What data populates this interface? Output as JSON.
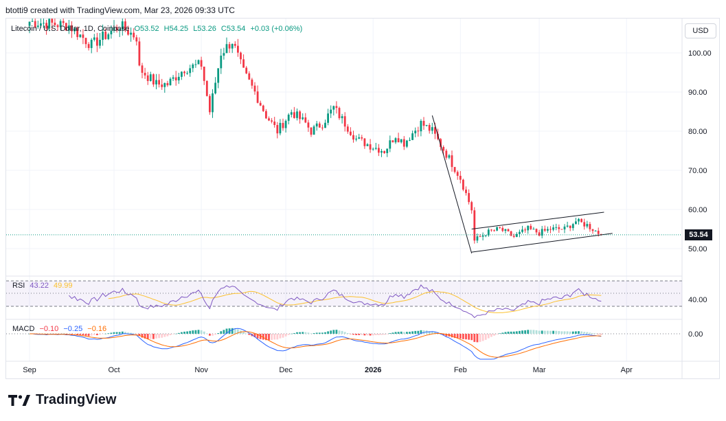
{
  "header": {
    "caption": "btotti9 created with TradingView.com, Mar 23, 2026 09:33 UTC"
  },
  "legend": {
    "symbol": "Litecoin / U.S. Dollar, 1D, Coinbase",
    "open": "O53.52",
    "high": "H54.25",
    "low": "L53.26",
    "close": "C53.54",
    "change": "+0.03 (+0.06%)"
  },
  "currency": "USD",
  "last_price_label": "53.54",
  "rsi_legend": {
    "name": "RSI",
    "value": "43.22",
    "ma_value": "49.99"
  },
  "macd_legend": {
    "name": "MACD",
    "hist": "−0.10",
    "macd": "−0.25",
    "signal": "−0.16"
  },
  "brand": {
    "name": "TradingView"
  },
  "colors": {
    "up": "#089981",
    "down": "#f23645",
    "rsi_line": "#7e57c2",
    "rsi_ma": "#fbc02d",
    "macd": "#2962ff",
    "signal": "#ff6d00"
  },
  "chart_data": {
    "type": "candlestick",
    "title": "Litecoin / U.S. Dollar, 1D, Coinbase",
    "y_ticks": [
      50,
      60,
      70,
      80,
      90,
      100
    ],
    "y_tick_labels": [
      "50.00",
      "60.00",
      "70.00",
      "80.00",
      "90.00",
      "100.00"
    ],
    "ylim": [
      48,
      108
    ],
    "x_tick_labels": [
      "Sep",
      "Oct",
      "Nov",
      "Dec",
      "2026",
      "Feb",
      "Mar",
      "Apr"
    ],
    "last_close": 53.54,
    "anchors": [
      [
        "Sep 1",
        108
      ],
      [
        "Sep 15",
        107
      ],
      [
        "Sep 23",
        102
      ],
      [
        "Oct 3",
        107
      ],
      [
        "Oct 9",
        104
      ],
      [
        "Oct 10",
        96
      ],
      [
        "Oct 16",
        92
      ],
      [
        "Oct 20",
        92
      ],
      [
        "Oct 26",
        96
      ],
      [
        "Nov 1",
        97
      ],
      [
        "Nov 4",
        85
      ],
      [
        "Nov 8",
        100
      ],
      [
        "Nov 12",
        103
      ],
      [
        "Nov 16",
        95
      ],
      [
        "Nov 20",
        90
      ],
      [
        "Nov 24",
        84
      ],
      [
        "Nov 28",
        80
      ],
      [
        "Dec 3",
        85
      ],
      [
        "Dec 8",
        82
      ],
      [
        "Dec 10",
        80
      ],
      [
        "Dec 14",
        82
      ],
      [
        "Dec 18",
        86
      ],
      [
        "Dec 26",
        78
      ],
      [
        "Jan 1",
        76
      ],
      [
        "Jan 5",
        75
      ],
      [
        "Jan 9",
        79
      ],
      [
        "Jan 12",
        77
      ],
      [
        "Jan 18",
        82
      ],
      [
        "Jan 22",
        80
      ],
      [
        "Jan 28",
        73
      ],
      [
        "Feb 1",
        68
      ],
      [
        "Feb 5",
        60
      ],
      [
        "Feb 6",
        52
      ],
      [
        "Feb 10",
        54
      ],
      [
        "Feb 15",
        55
      ],
      [
        "Feb 20",
        53
      ],
      [
        "Feb 25",
        55
      ],
      [
        "Mar 1",
        54
      ],
      [
        "Mar 5",
        55
      ],
      [
        "Mar 10",
        55
      ],
      [
        "Mar 14",
        57
      ],
      [
        "Mar 18",
        56
      ],
      [
        "Mar 23",
        53.54
      ]
    ],
    "trendlines": [
      {
        "name": "downtrend",
        "from": [
          "Jan 22",
          84
        ],
        "to": [
          "Feb 5",
          48.8
        ]
      },
      {
        "name": "channel-upper",
        "from": [
          "Feb 5",
          55
        ],
        "to": [
          "Mar 24",
          59.3
        ]
      },
      {
        "name": "channel-lower",
        "from": [
          "Feb 5",
          49.1
        ],
        "to": [
          "Mar 27",
          53.9
        ]
      }
    ],
    "rsi": {
      "value": 43.22,
      "ma": 49.99,
      "tick_label": "40.00",
      "band_upper": 70,
      "band_lower": 30
    },
    "macd": {
      "histogram": -0.1,
      "macd": -0.25,
      "signal": -0.16,
      "tick_label": "0.00"
    }
  }
}
